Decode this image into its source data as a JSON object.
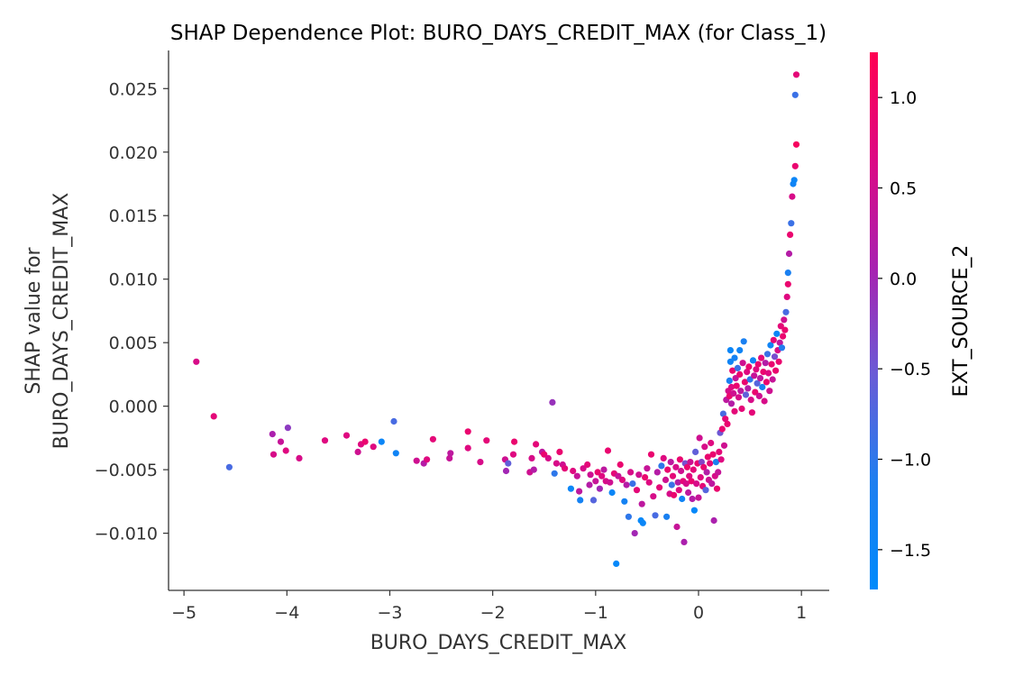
{
  "chart_data": {
    "type": "scatter",
    "title": "SHAP Dependence Plot: BURO_DAYS_CREDIT_MAX (for Class_1)",
    "xlabel": "BURO_DAYS_CREDIT_MAX",
    "ylabel_line1": "SHAP value for",
    "ylabel_line2": "BURO_DAYS_CREDIT_MAX",
    "xlim": [
      -5.15,
      1.27
    ],
    "ylim": [
      -0.0145,
      0.028
    ],
    "xticks": [
      -5,
      -4,
      -3,
      -2,
      -1,
      0,
      1
    ],
    "xtick_labels": [
      "−5",
      "−4",
      "−3",
      "−2",
      "−1",
      "0",
      "1"
    ],
    "yticks": [
      -0.01,
      -0.005,
      0.0,
      0.005,
      0.01,
      0.015,
      0.02,
      0.025
    ],
    "ytick_labels": [
      "−0.010",
      "−0.005",
      "0.000",
      "0.005",
      "0.010",
      "0.015",
      "0.020",
      "0.025"
    ],
    "colorbar": {
      "label": "EXT_SOURCE_2",
      "range": [
        -1.72,
        1.25
      ],
      "ticks": [
        -1.5,
        -1.0,
        -0.5,
        0.0,
        0.5,
        1.0
      ],
      "tick_labels": [
        "−1.5",
        "−1.0",
        "−0.5",
        "0.0",
        "0.5",
        "1.0"
      ],
      "colormap": [
        "#008afb",
        "#1e7ff0",
        "#6a5bd6",
        "#a821b0",
        "#dc0a84",
        "#ff0052"
      ]
    },
    "grid": false,
    "points": [
      [
        -4.88,
        0.0035,
        0.6
      ],
      [
        -4.71,
        -0.0008,
        0.8
      ],
      [
        -4.56,
        -0.0048,
        -0.8
      ],
      [
        -4.14,
        -0.0022,
        0.1
      ],
      [
        -4.13,
        -0.0038,
        0.6
      ],
      [
        -4.06,
        -0.0028,
        0.4
      ],
      [
        -4.01,
        -0.0035,
        0.7
      ],
      [
        -3.99,
        -0.0017,
        -0.2
      ],
      [
        -3.88,
        -0.0041,
        0.6
      ],
      [
        -3.63,
        -0.0027,
        0.7
      ],
      [
        -3.42,
        -0.0023,
        0.7
      ],
      [
        -3.31,
        -0.0036,
        0.5
      ],
      [
        -3.28,
        -0.003,
        0.7
      ],
      [
        -3.24,
        -0.0028,
        0.9
      ],
      [
        -3.16,
        -0.0032,
        0.7
      ],
      [
        -3.08,
        -0.0028,
        -1.5
      ],
      [
        -2.96,
        -0.0012,
        -0.8
      ],
      [
        -2.94,
        -0.0037,
        -1.4
      ],
      [
        -2.74,
        -0.0043,
        0.5
      ],
      [
        -2.67,
        -0.0045,
        0.2
      ],
      [
        -2.64,
        -0.0042,
        0.7
      ],
      [
        -2.58,
        -0.0026,
        0.8
      ],
      [
        -2.42,
        -0.0041,
        0.4
      ],
      [
        -2.41,
        -0.0037,
        0.3
      ],
      [
        -2.24,
        -0.002,
        0.9
      ],
      [
        -2.24,
        -0.0033,
        0.7
      ],
      [
        -2.12,
        -0.0044,
        0.6
      ],
      [
        -2.06,
        -0.0027,
        0.8
      ],
      [
        -1.88,
        -0.0042,
        0.5
      ],
      [
        -1.87,
        -0.0051,
        0.0
      ],
      [
        -1.85,
        -0.0045,
        -0.6
      ],
      [
        -1.8,
        -0.0038,
        0.7
      ],
      [
        -1.79,
        -0.0028,
        0.9
      ],
      [
        -1.64,
        -0.0052,
        0.5
      ],
      [
        -1.62,
        -0.0041,
        0.6
      ],
      [
        -1.6,
        -0.005,
        0.2
      ],
      [
        -1.58,
        -0.003,
        0.8
      ],
      [
        -1.52,
        -0.0036,
        0.3
      ],
      [
        -1.5,
        -0.0038,
        0.9
      ],
      [
        -1.46,
        -0.0041,
        0.6
      ],
      [
        -1.42,
        0.0003,
        -0.1
      ],
      [
        -1.4,
        -0.0053,
        -1.0
      ],
      [
        -1.38,
        -0.0045,
        0.6
      ],
      [
        -1.35,
        -0.0036,
        0.9
      ],
      [
        -1.32,
        -0.0046,
        0.5
      ],
      [
        -1.3,
        -0.0049,
        0.8
      ],
      [
        -1.24,
        -0.0065,
        -1.5
      ],
      [
        -1.22,
        -0.0051,
        0.7
      ],
      [
        -1.18,
        -0.0055,
        0.4
      ],
      [
        -1.16,
        -0.0067,
        0.3
      ],
      [
        -1.15,
        -0.0074,
        -1.3
      ],
      [
        -1.12,
        -0.0049,
        0.6
      ],
      [
        -1.08,
        -0.0046,
        0.8
      ],
      [
        -1.06,
        -0.0062,
        0.2
      ],
      [
        -1.05,
        -0.0054,
        0.5
      ],
      [
        -1.02,
        -0.0074,
        -0.7
      ],
      [
        -1.0,
        -0.0059,
        0.4
      ],
      [
        -0.98,
        -0.0052,
        0.9
      ],
      [
        -0.96,
        -0.0065,
        0.0
      ],
      [
        -0.94,
        -0.0055,
        0.7
      ],
      [
        -0.92,
        -0.005,
        0.3
      ],
      [
        -0.9,
        -0.0059,
        0.6
      ],
      [
        -0.88,
        -0.0035,
        0.9
      ],
      [
        -0.86,
        -0.006,
        0.5
      ],
      [
        -0.84,
        -0.0068,
        -1.5
      ],
      [
        -0.82,
        -0.0053,
        0.8
      ],
      [
        -0.8,
        -0.0124,
        -1.6
      ],
      [
        -0.78,
        -0.0055,
        0.4
      ],
      [
        -0.76,
        -0.0046,
        0.9
      ],
      [
        -0.74,
        -0.0058,
        0.7
      ],
      [
        -0.72,
        -0.0075,
        -1.3
      ],
      [
        -0.7,
        -0.0062,
        0.2
      ],
      [
        -0.68,
        -0.0087,
        -1.0
      ],
      [
        -0.66,
        -0.0052,
        0.6
      ],
      [
        -0.64,
        -0.0061,
        -0.9
      ],
      [
        -0.62,
        -0.01,
        0.0
      ],
      [
        -0.6,
        -0.0066,
        0.8
      ],
      [
        -0.58,
        -0.0054,
        0.5
      ],
      [
        -0.56,
        -0.009,
        -1.6
      ],
      [
        -0.55,
        -0.0077,
        0.3
      ],
      [
        -0.54,
        -0.0092,
        -1.5
      ],
      [
        -0.52,
        -0.0056,
        0.9
      ],
      [
        -0.5,
        -0.0049,
        0.4
      ],
      [
        -0.48,
        -0.006,
        0.7
      ],
      [
        -0.46,
        -0.0038,
        0.9
      ],
      [
        -0.44,
        -0.0071,
        0.6
      ],
      [
        -0.42,
        -0.0086,
        -0.8
      ],
      [
        -0.4,
        -0.0052,
        0.2
      ],
      [
        -0.38,
        -0.0064,
        0.8
      ],
      [
        -0.36,
        -0.0047,
        -1.0
      ],
      [
        -0.34,
        -0.0041,
        0.7
      ],
      [
        -0.32,
        -0.0058,
        0.5
      ],
      [
        -0.31,
        -0.0087,
        -1.2
      ],
      [
        -0.3,
        -0.005,
        0.9
      ],
      [
        -0.28,
        -0.0069,
        0.6
      ],
      [
        -0.27,
        -0.0044,
        0.3
      ],
      [
        -0.26,
        -0.0062,
        -0.9
      ],
      [
        -0.25,
        -0.0055,
        0.8
      ],
      [
        -0.24,
        -0.007,
        0.9
      ],
      [
        -0.22,
        -0.0048,
        0.6
      ],
      [
        -0.21,
        -0.0095,
        0.4
      ],
      [
        -0.2,
        -0.006,
        0.2
      ],
      [
        -0.19,
        -0.0066,
        0.7
      ],
      [
        -0.18,
        -0.0042,
        0.9
      ],
      [
        -0.17,
        -0.0051,
        0.5
      ],
      [
        -0.16,
        -0.0073,
        -1.4
      ],
      [
        -0.15,
        -0.0059,
        0.8
      ],
      [
        -0.14,
        -0.0107,
        0.1
      ],
      [
        -0.13,
        -0.0045,
        -0.4
      ],
      [
        -0.12,
        -0.0061,
        0.6
      ],
      [
        -0.11,
        -0.0048,
        0.9
      ],
      [
        -0.1,
        -0.0068,
        0.3
      ],
      [
        -0.09,
        -0.0055,
        0.7
      ],
      [
        -0.08,
        -0.0044,
        0.5
      ],
      [
        -0.07,
        -0.0059,
        0.9
      ],
      [
        -0.06,
        -0.0073,
        0.2
      ],
      [
        -0.05,
        -0.005,
        0.8
      ],
      [
        -0.04,
        -0.0082,
        -1.6
      ],
      [
        -0.03,
        -0.0036,
        -0.6
      ],
      [
        -0.02,
        -0.0061,
        0.6
      ],
      [
        -0.01,
        -0.0045,
        0.9
      ],
      [
        0.0,
        -0.0072,
        0.4
      ],
      [
        0.01,
        -0.0025,
        0.5
      ],
      [
        0.02,
        -0.0056,
        0.7
      ],
      [
        0.03,
        -0.0044,
        -0.3
      ],
      [
        0.04,
        -0.0063,
        0.8
      ],
      [
        0.05,
        -0.0048,
        0.9
      ],
      [
        0.06,
        -0.0032,
        0.6
      ],
      [
        0.07,
        -0.0066,
        -0.7
      ],
      [
        0.08,
        -0.0052,
        0.2
      ],
      [
        0.09,
        -0.004,
        0.9
      ],
      [
        0.1,
        -0.0058,
        0.5
      ],
      [
        0.11,
        -0.0045,
        0.8
      ],
      [
        0.12,
        -0.0029,
        0.7
      ],
      [
        0.13,
        -0.0061,
        0.3
      ],
      [
        0.14,
        -0.0038,
        0.9
      ],
      [
        0.15,
        -0.009,
        0.1
      ],
      [
        0.16,
        -0.0055,
        0.6
      ],
      [
        0.17,
        -0.0044,
        -1.2
      ],
      [
        0.18,
        -0.0065,
        0.9
      ],
      [
        0.19,
        -0.0052,
        0.4
      ],
      [
        0.2,
        -0.0036,
        0.8
      ],
      [
        0.21,
        -0.0021,
        -0.5
      ],
      [
        0.22,
        -0.0042,
        0.7
      ],
      [
        0.23,
        -0.0018,
        0.9
      ],
      [
        0.24,
        -0.0006,
        -0.8
      ],
      [
        0.25,
        -0.0031,
        0.5
      ],
      [
        0.26,
        -0.001,
        0.8
      ],
      [
        0.27,
        0.0005,
        0.3
      ],
      [
        0.28,
        -0.0014,
        0.9
      ],
      [
        0.29,
        0.0012,
        0.6
      ],
      [
        0.3,
        0.002,
        -1.2
      ],
      [
        0.3,
        0.0008,
        0.9
      ],
      [
        0.31,
        0.0035,
        -1.4
      ],
      [
        0.31,
        0.0044,
        -1.5
      ],
      [
        0.32,
        0.0015,
        0.7
      ],
      [
        0.32,
        0.0002,
        0.2
      ],
      [
        0.33,
        0.0028,
        0.9
      ],
      [
        0.34,
        0.001,
        0.5
      ],
      [
        0.35,
        0.0038,
        -1.3
      ],
      [
        0.35,
        -0.0004,
        0.8
      ],
      [
        0.36,
        0.0022,
        0.4
      ],
      [
        0.37,
        0.0016,
        0.9
      ],
      [
        0.38,
        0.003,
        -0.9
      ],
      [
        0.39,
        0.0007,
        0.6
      ],
      [
        0.4,
        0.0044,
        -1.4
      ],
      [
        0.4,
        0.0025,
        0.9
      ],
      [
        0.41,
        0.0012,
        0.3
      ],
      [
        0.42,
        -0.0002,
        0.8
      ],
      [
        0.43,
        0.0034,
        0.5
      ],
      [
        0.44,
        0.0051,
        -1.2
      ],
      [
        0.45,
        0.0019,
        0.9
      ],
      [
        0.46,
        0.0009,
        -0.6
      ],
      [
        0.47,
        0.0027,
        0.7
      ],
      [
        0.48,
        0.0014,
        0.2
      ],
      [
        0.49,
        0.0031,
        0.9
      ],
      [
        0.5,
        0.0021,
        -1.0
      ],
      [
        0.51,
        0.0005,
        0.6
      ],
      [
        0.52,
        -0.0005,
        0.8
      ],
      [
        0.53,
        0.0036,
        -1.4
      ],
      [
        0.54,
        0.0024,
        0.4
      ],
      [
        0.55,
        0.0011,
        0.9
      ],
      [
        0.56,
        0.0029,
        0.7
      ],
      [
        0.57,
        0.0018,
        -0.7
      ],
      [
        0.58,
        0.0033,
        0.9
      ],
      [
        0.59,
        0.0008,
        0.5
      ],
      [
        0.6,
        0.0022,
        0.3
      ],
      [
        0.61,
        0.0038,
        0.8
      ],
      [
        0.62,
        0.0015,
        -1.3
      ],
      [
        0.63,
        0.0027,
        0.9
      ],
      [
        0.64,
        0.0004,
        0.6
      ],
      [
        0.65,
        0.0034,
        0.2
      ],
      [
        0.66,
        0.0019,
        0.9
      ],
      [
        0.67,
        0.0041,
        -0.9
      ],
      [
        0.68,
        0.0026,
        0.7
      ],
      [
        0.69,
        0.0012,
        0.5
      ],
      [
        0.7,
        0.0048,
        -1.4
      ],
      [
        0.71,
        0.0033,
        0.9
      ],
      [
        0.72,
        0.0021,
        0.4
      ],
      [
        0.73,
        0.0052,
        0.8
      ],
      [
        0.74,
        0.0039,
        -0.4
      ],
      [
        0.75,
        0.0028,
        0.9
      ],
      [
        0.76,
        0.0057,
        -1.5
      ],
      [
        0.77,
        0.0044,
        0.6
      ],
      [
        0.78,
        0.0035,
        0.9
      ],
      [
        0.79,
        0.005,
        0.3
      ],
      [
        0.8,
        0.0063,
        0.8
      ],
      [
        0.81,
        0.0046,
        -1.1
      ],
      [
        0.82,
        0.0055,
        0.9
      ],
      [
        0.83,
        0.0068,
        0.5
      ],
      [
        0.84,
        0.006,
        0.9
      ],
      [
        0.85,
        0.0074,
        -0.8
      ],
      [
        0.86,
        0.0086,
        0.7
      ],
      [
        0.87,
        0.0096,
        0.9
      ],
      [
        0.87,
        0.0105,
        -1.2
      ],
      [
        0.88,
        0.012,
        0.2
      ],
      [
        0.89,
        0.0135,
        0.9
      ],
      [
        0.9,
        0.0144,
        -0.9
      ],
      [
        0.91,
        0.0165,
        0.6
      ],
      [
        0.92,
        0.0175,
        -1.4
      ],
      [
        0.93,
        0.0178,
        -1.5
      ],
      [
        0.94,
        0.0189,
        0.9
      ],
      [
        0.95,
        0.0206,
        1.1
      ],
      [
        0.94,
        0.0245,
        -0.9
      ],
      [
        0.95,
        0.0261,
        0.8
      ]
    ]
  }
}
